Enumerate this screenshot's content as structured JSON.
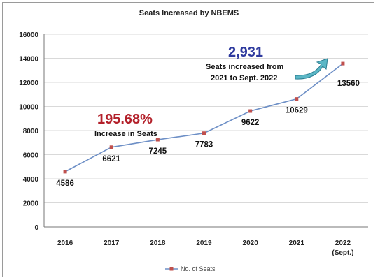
{
  "chart_data": {
    "type": "line",
    "title": "Seats Increased by NBEMS",
    "categories": [
      "2016",
      "2017",
      "2018",
      "2019",
      "2020",
      "2021",
      "2022\n(Sept.)"
    ],
    "series": [
      {
        "name": "No. of Seats",
        "values": [
          4586,
          6621,
          7245,
          7783,
          9622,
          10629,
          13560
        ],
        "color": "#c0504d"
      }
    ],
    "ylim": [
      0,
      16000
    ],
    "yticks": [
      0,
      2000,
      4000,
      6000,
      8000,
      10000,
      12000,
      14000,
      16000
    ],
    "grid": true,
    "legend": "bottom",
    "annotations": {
      "increase_pct": "195.68%",
      "increase_label": "Increase in Seats",
      "seats_added": "2,931",
      "seats_added_line1": "Seats increased from",
      "seats_added_line2": "2021 to Sept. 2022",
      "arrow_icon": "curved-arrow-icon"
    },
    "colors": {
      "line": "#6d8fc6",
      "marker": "#c0504d",
      "grid": "#d9d9d9",
      "red": "#b3202a",
      "blue": "#2e3a9e",
      "arrow": "#5bb7c6"
    }
  }
}
